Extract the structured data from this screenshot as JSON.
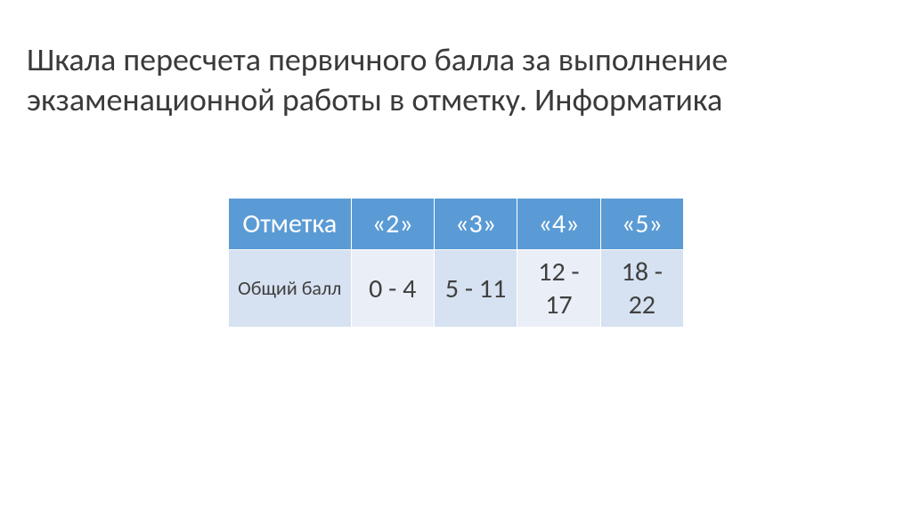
{
  "title": "Шкала пересчета первичного балла за выполнение экзаменационной работы в отметку. Информатика",
  "table": {
    "header_label": "Отметка",
    "grades": [
      "«2»",
      "«3»",
      "«4»",
      "«5»"
    ],
    "row_label": "Общий балл",
    "ranges": [
      "0 - 4",
      "5 - 11",
      "12 - 17",
      "18 - 22"
    ],
    "header_bg": "#5b9bd5",
    "header_color": "#ffffff",
    "cell_bg_alt_a": "#d6e1f1",
    "cell_bg_alt_b": "#eaeff7",
    "text_color": "#404040",
    "header_fontsize": 30,
    "cell_fontsize": 30,
    "row_label_fontsize": 22,
    "col_label_width": 164,
    "col_val_width": 148
  },
  "title_fontsize": 36,
  "title_color": "#3a3a3a",
  "background_color": "#ffffff"
}
